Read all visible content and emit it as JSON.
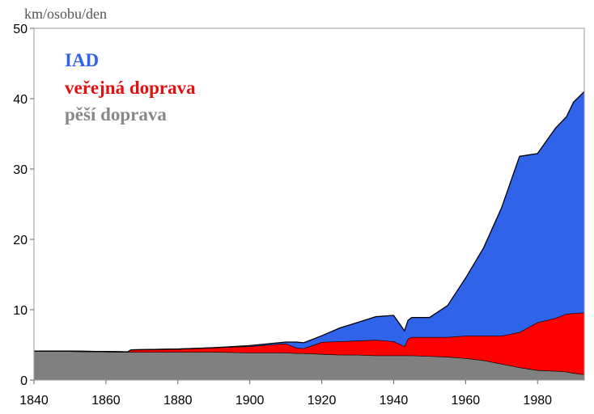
{
  "chart_data": {
    "type": "area",
    "stacked": true,
    "ylabel": "km/osobu/den",
    "xlabel": "",
    "title": "",
    "xlim": [
      1840,
      1993
    ],
    "ylim": [
      0,
      50
    ],
    "x_ticks": [
      "1840",
      "1860",
      "1880",
      "1900",
      "1920",
      "1940",
      "1960",
      "1980"
    ],
    "y_ticks": [
      "0",
      "10",
      "20",
      "30",
      "40",
      "50"
    ],
    "grid": false,
    "legend_position": "top-left",
    "x": [
      1840,
      1850,
      1866,
      1867,
      1880,
      1890,
      1900,
      1910,
      1913,
      1915,
      1920,
      1925,
      1930,
      1935,
      1940,
      1943,
      1944,
      1945,
      1950,
      1955,
      1960,
      1965,
      1970,
      1975,
      1980,
      1985,
      1988,
      1990,
      1993
    ],
    "series": [
      {
        "name": "pěší doprava",
        "color": "#808080",
        "values": [
          4.1,
          4.1,
          4.0,
          4.0,
          4.0,
          4.0,
          3.9,
          3.9,
          3.8,
          3.8,
          3.7,
          3.6,
          3.6,
          3.5,
          3.5,
          3.5,
          3.5,
          3.5,
          3.4,
          3.3,
          3.1,
          2.8,
          2.3,
          1.8,
          1.4,
          1.3,
          1.2,
          1.0,
          0.8
        ]
      },
      {
        "name": "veřejná doprava",
        "color": "#ff0000",
        "values": [
          0.0,
          0.0,
          0.0,
          0.3,
          0.4,
          0.6,
          0.9,
          1.3,
          0.8,
          0.7,
          1.7,
          1.9,
          2.0,
          2.2,
          2.0,
          1.3,
          2.4,
          2.6,
          2.7,
          2.8,
          3.2,
          3.5,
          4.0,
          5.0,
          6.8,
          7.5,
          8.2,
          8.5,
          8.8
        ]
      },
      {
        "name": "IAD",
        "color": "#2f63ea",
        "values": [
          0.0,
          0.0,
          0.0,
          0.0,
          0.0,
          0.0,
          0.1,
          0.2,
          0.8,
          0.8,
          0.9,
          1.9,
          2.6,
          3.3,
          3.7,
          2.2,
          2.6,
          2.8,
          2.8,
          4.5,
          8.2,
          12.5,
          18.2,
          25.0,
          24.0,
          27.0,
          28.0,
          30.0,
          31.4
        ]
      }
    ]
  }
}
